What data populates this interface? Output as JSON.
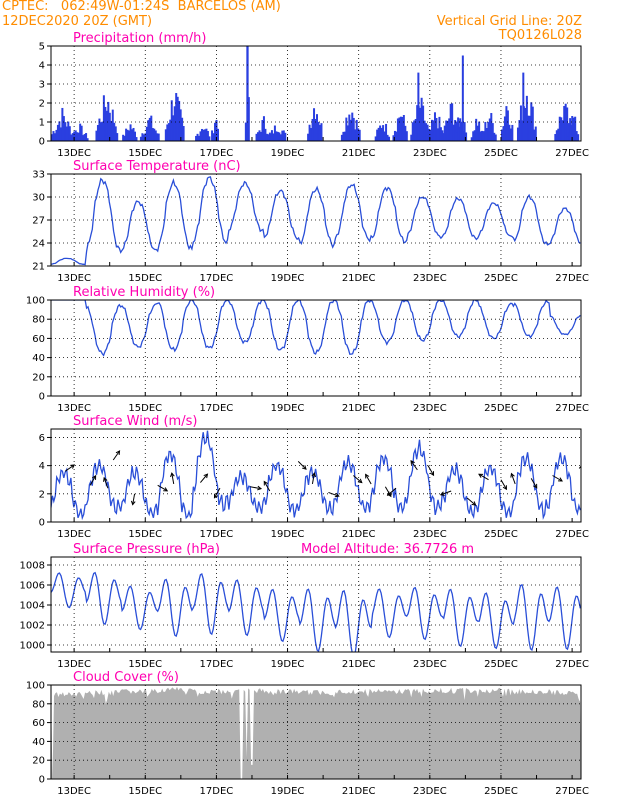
{
  "header": {
    "line1_left": "CPTEC:   062:49W-01:24S  BARCELOS (AM)",
    "line2_left": "12DEC2020 20Z (GMT)",
    "line2_right": "Vertical Grid Line: 20Z",
    "line3_right": "TQ0126L028"
  },
  "colors": {
    "header": "#ff8c00",
    "title": "#ff00b0",
    "line": "#2a4fd8",
    "bars": "#2a3fe0",
    "cloud": "#b0b0b0",
    "grid": "#000000"
  },
  "x_axis": {
    "ticks": [
      "13DEC",
      "15DEC",
      "17DEC",
      "19DEC",
      "21DEC",
      "23DEC",
      "25DEC",
      "27DEC"
    ],
    "range_days": [
      0,
      14.9
    ]
  },
  "chart_data": [
    {
      "type": "bar",
      "title": "Precipitation (mm/h)",
      "ylim": [
        0,
        5
      ],
      "yticks": [
        0,
        1,
        2,
        3,
        4,
        5
      ],
      "daily_events": [
        [
          0.3,
          0.6,
          1.6
        ],
        [
          0.75,
          0.5,
          0.9
        ],
        [
          1.55,
          0.6,
          2.6
        ],
        [
          2.2,
          0.4,
          1.0
        ],
        [
          2.75,
          0.5,
          1.3
        ],
        [
          3.45,
          0.5,
          2.8
        ],
        [
          4.25,
          0.4,
          1.0
        ],
        [
          4.6,
          0.2,
          1.5
        ],
        [
          5.5,
          0.1,
          5.0
        ],
        [
          5.95,
          0.4,
          1.2
        ],
        [
          6.35,
          0.5,
          1.0
        ],
        [
          7.4,
          0.4,
          2.4
        ],
        [
          8.4,
          0.5,
          2.1
        ],
        [
          9.3,
          0.4,
          1.2
        ],
        [
          9.8,
          0.4,
          1.8
        ],
        [
          10.35,
          0.5,
          2.2
        ],
        [
          10.8,
          0.4,
          1.6
        ],
        [
          11.25,
          0.5,
          2.0
        ],
        [
          11.5,
          0.3,
          1.6
        ],
        [
          11.95,
          0.3,
          1.4
        ],
        [
          12.3,
          0.4,
          1.6
        ],
        [
          12.8,
          0.3,
          2.5
        ],
        [
          13.35,
          0.5,
          3.2
        ],
        [
          14.4,
          0.5,
          2.0
        ],
        [
          14.65,
          0.3,
          1.5
        ]
      ],
      "special_spikes": [
        [
          5.5,
          5.0
        ],
        [
          10.3,
          3.6
        ],
        [
          11.55,
          4.5
        ],
        [
          13.25,
          3.6
        ]
      ]
    },
    {
      "type": "line",
      "title": "Surface Temperature (nC)",
      "ylim": [
        21,
        33
      ],
      "yticks": [
        21,
        24,
        27,
        30,
        33
      ],
      "daily_max": [
        22.0,
        32.2,
        29.4,
        31.8,
        32.5,
        31.8,
        30.8,
        31.0,
        31.6,
        31.2,
        30.0,
        29.8,
        29.2,
        30.0,
        28.5
      ],
      "daily_min": [
        21.2,
        23.0,
        23.0,
        23.2,
        24.0,
        25.6,
        24.6,
        23.7,
        24.5,
        24.2,
        24.8,
        24.6,
        24.8,
        23.8,
        23.8
      ]
    },
    {
      "type": "line",
      "title": "Relative Humidity (%)",
      "ylim": [
        0,
        100
      ],
      "yticks": [
        0,
        20,
        40,
        60,
        80,
        100
      ],
      "daily_max": [
        100,
        94,
        95,
        100,
        100,
        100,
        100,
        100,
        100,
        100,
        100,
        100,
        96,
        98,
        85
      ],
      "daily_min": [
        100,
        44,
        51,
        48,
        50,
        56,
        48,
        45,
        44,
        56,
        58,
        62,
        60,
        62,
        64
      ]
    },
    {
      "type": "line",
      "title": "Surface Wind (m/s)",
      "ylim": [
        0,
        6.6
      ],
      "yticks": [
        0,
        2,
        4,
        6
      ],
      "daily_max": [
        3.5,
        4.0,
        3.5,
        4.8,
        6.0,
        3.2,
        4.0,
        3.5,
        4.2,
        4.5,
        5.2,
        3.7,
        3.8,
        4.5,
        4.5
      ],
      "daily_min": [
        0.5,
        1.0,
        0.6,
        0.4,
        1.2,
        1.0,
        0.8,
        0.9,
        1.0,
        1.0,
        1.0,
        0.7,
        0.6,
        0.8,
        0.8
      ],
      "arrows": [
        [
          0.4,
          3.6,
          -35
        ],
        [
          1.1,
          2.6,
          -60
        ],
        [
          1.6,
          2.4,
          -110
        ],
        [
          1.75,
          4.4,
          -55
        ],
        [
          2.35,
          2.0,
          100
        ],
        [
          3.0,
          2.6,
          30
        ],
        [
          3.45,
          2.7,
          -100
        ],
        [
          4.2,
          2.8,
          -50
        ],
        [
          4.75,
          2.4,
          120
        ],
        [
          5.6,
          2.5,
          10
        ],
        [
          6.15,
          2.2,
          -120
        ],
        [
          6.95,
          4.3,
          45
        ],
        [
          7.35,
          2.7,
          -80
        ],
        [
          7.8,
          2.1,
          20
        ],
        [
          8.5,
          3.3,
          40
        ],
        [
          9.0,
          2.7,
          -120
        ],
        [
          9.4,
          2.5,
          60
        ],
        [
          9.7,
          2.4,
          140
        ],
        [
          10.3,
          3.7,
          -125
        ],
        [
          10.6,
          4.0,
          60
        ],
        [
          11.25,
          2.2,
          160
        ],
        [
          11.7,
          1.7,
          40
        ],
        [
          12.3,
          3.0,
          -150
        ],
        [
          12.65,
          3.0,
          60
        ],
        [
          13.05,
          2.7,
          -110
        ],
        [
          13.5,
          3.1,
          60
        ],
        [
          14.1,
          3.3,
          30
        ],
        [
          14.85,
          3.8,
          -50
        ]
      ]
    },
    {
      "type": "line",
      "title": "Surface Pressure (hPa)",
      "annotation": "Model Altitude: 36.7726 m",
      "ylim": [
        999.3,
        1008.8
      ],
      "yticks": [
        1000,
        1002,
        1004,
        1006,
        1008
      ],
      "mean": [
        1005.7,
        1005.0,
        1004.0,
        1004.1,
        1004.5,
        1004.1,
        1003.3,
        1002.9,
        1002.6,
        1003.5,
        1003.5,
        1003.1,
        1002.8,
        1003.2,
        1003.1
      ],
      "amplitude": [
        2.0,
        3.0,
        2.5,
        3.3,
        3.5,
        3.2,
        3.0,
        3.6,
        3.8,
        2.8,
        3.0,
        3.3,
        3.2,
        3.8,
        3.6
      ]
    },
    {
      "type": "area",
      "title": "Cloud Cover (%)",
      "ylim": [
        0,
        100
      ],
      "yticks": [
        0,
        20,
        40,
        60,
        80,
        100
      ],
      "daily_level": [
        93,
        95,
        96,
        98,
        96,
        97,
        96,
        95,
        96,
        96,
        97,
        97,
        97,
        96,
        95
      ],
      "dips": [
        [
          0.05,
          0
        ],
        [
          5.35,
          0
        ],
        [
          5.5,
          23
        ],
        [
          5.65,
          15
        ],
        [
          1.55,
          80
        ],
        [
          14.9,
          82
        ]
      ]
    }
  ]
}
